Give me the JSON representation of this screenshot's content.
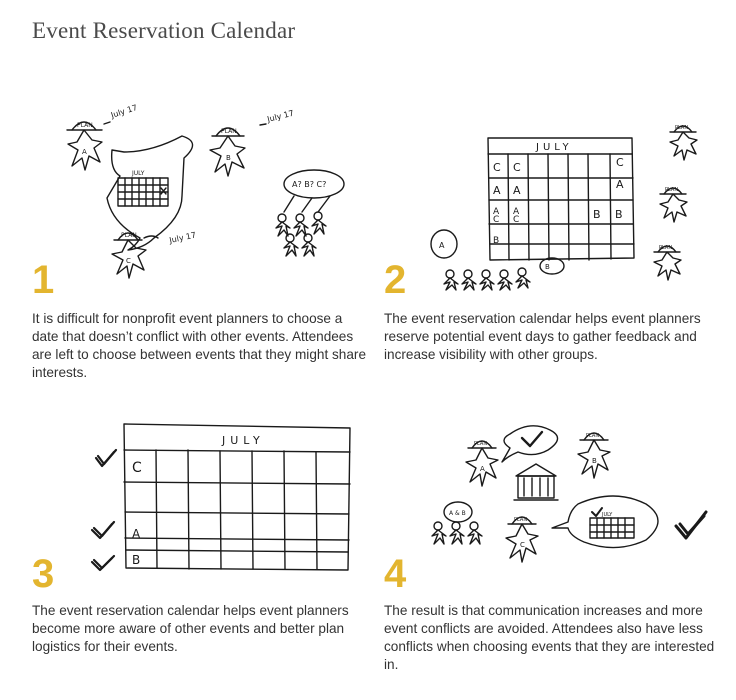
{
  "page": {
    "title": "Event Reservation Calendar"
  },
  "panels": [
    {
      "number": "1",
      "text": "It is difficult for nonprofit event planners to choose a date that doesn’t conflict with other events. Attendees are left to choose between events that they might share interests.",
      "sketch": {
        "plan": "PLAN",
        "date": "July 17",
        "month": "JULY",
        "bubble": "A? B? C?",
        "people": [
          "A",
          "B",
          "C"
        ]
      }
    },
    {
      "number": "2",
      "text": "The event reservation calendar helps event planners reserve potential event days to gather feedback and increase visibility with other groups.",
      "sketch": {
        "month": "JULY",
        "plan": "PLAN",
        "bubble_left": "A",
        "bubble_right": "B"
      }
    },
    {
      "number": "3",
      "text": "The event reservation calendar helps event planners become more aware of other events and better plan logistics for their events.",
      "sketch": {
        "month": "JULY",
        "row_labels": [
          "C",
          "A",
          "B"
        ]
      }
    },
    {
      "number": "4",
      "text": "The result is that communication increases and more event conflicts are avoided. Attendees also have less conflicts when choosing events that they are interested in.",
      "sketch": {
        "month": "JULY",
        "plan": "PLAN",
        "bubble": "A & B",
        "people": [
          "A",
          "B",
          "C"
        ]
      }
    }
  ],
  "colors": {
    "accent": "#e3b52f",
    "ink": "#1a1a1a",
    "text": "#333333"
  }
}
